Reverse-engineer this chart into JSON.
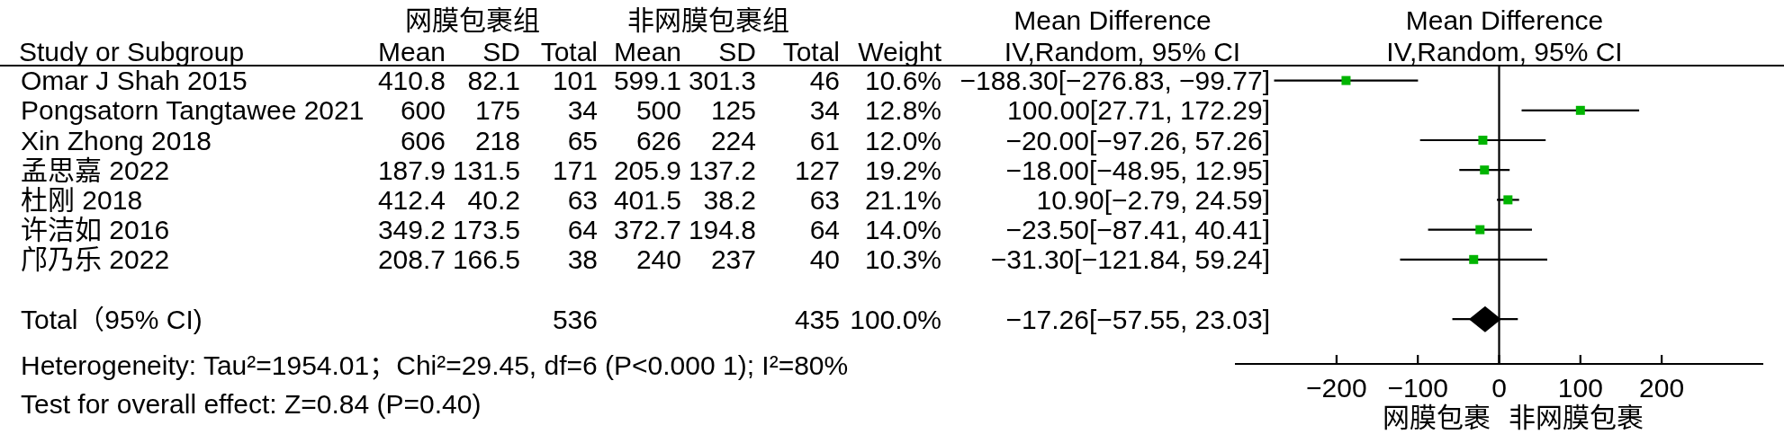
{
  "chart_data": [
    {
      "type": "other",
      "annotations": [
        "网膜包裹组",
        "非网膜包裹组",
        "Mean Difference",
        "IV,Random, 95% CI",
        "Study or Subgroup",
        "Mean",
        "SD",
        "Total",
        "Mean",
        "SD",
        "Total",
        "Weight",
        "Omar J Shah 2015",
        "410.8",
        "82.1",
        "101",
        "599.1",
        "301.3",
        "46",
        "10.6%",
        "Pongsatorn Tangtawee 2021",
        "600",
        "175",
        "34",
        "500",
        "125",
        "34",
        "12.8%",
        "Xin Zhong 2018",
        "606",
        "218",
        "65",
        "626",
        "224",
        "61",
        "12.0%",
        "孟思嘉 2022",
        "187.9",
        "131.5",
        "171",
        "205.9",
        "137.2",
        "127",
        "19.2%",
        "杜刚 2018",
        "412.4",
        "40.2",
        "63",
        "401.5",
        "38.2",
        "63",
        "21.1%",
        "许洁如 2016",
        "349.2",
        "173.5",
        "64",
        "372.7",
        "194.8",
        "64",
        "14.0%",
        "邝乃乐 2022",
        "208.7",
        "166.5",
        "38",
        "240",
        "237",
        "40",
        "10.3%",
        "Total（95% CI)",
        "536",
        "435",
        "100.0%",
        "−17.26[−57.55, 23.03]",
        "Heterogeneity: Tau²=1954.01；Chi²=29.45, df=6 (P<0.000 1); I²=80%",
        "Test for overall effect: Z=0.84 (P=0.40)"
      ]
    },
    {
      "type": "scatter",
      "orientation": "horizontal",
      "title": "Mean Difference",
      "subtitle": "IV,Random, 95% CI",
      "categories": [
        null,
        null,
        null,
        null,
        null,
        null,
        null,
        null,
        null,
        null
      ],
      "series": [
        {
          "marker": "square",
          "color": "#00b400",
          "values": [
            -188.3,
            100,
            -20,
            -18,
            10.9,
            -23.5,
            -31.3,
            null,
            null,
            null
          ],
          "errors": [
            [
              -276.83,
              -99.77
            ],
            [
              27.71,
              172.29
            ],
            [
              -97.26,
              57.26
            ],
            [
              -48.95,
              12.95
            ],
            [
              -2.79,
              24.59
            ],
            [
              -87.41,
              40.41
            ],
            [
              -121.84,
              59.24
            ],
            null,
            null,
            null
          ],
          "value_labels": [
            "−188.30[−276.83, −99.77]",
            "100.00[27.71, 172.29]",
            "−20.00[−97.26, 57.26]",
            "−18.00[−48.95, 12.95]",
            "10.90[−2.79, 24.59]",
            "−23.50[−87.41, 40.41]",
            "−31.30[−121.84, 59.24]",
            null,
            null,
            null
          ]
        },
        {
          "marker": "diamond",
          "color": "#000000",
          "values": [
            null,
            null,
            null,
            null,
            null,
            null,
            null,
            null,
            -17.26,
            null
          ],
          "errors": [
            null,
            null,
            null,
            null,
            null,
            null,
            null,
            null,
            [
              -57.55,
              23.03
            ],
            null
          ]
        }
      ],
      "xlim": [
        -325,
        325
      ],
      "xticks": [
        -200,
        -100,
        0,
        100,
        200
      ],
      "ref_lines": [
        {
          "axis": "x",
          "value": 0
        }
      ],
      "annotations": [
        "网膜包裹",
        "非网膜包裹"
      ]
    }
  ]
}
